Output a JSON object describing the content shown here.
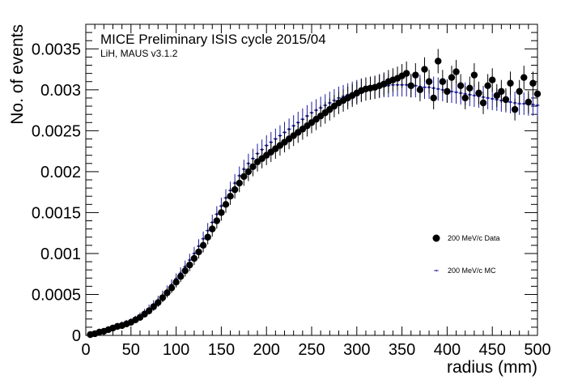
{
  "chart_data": {
    "type": "scatter",
    "title": "MICE Preliminary ISIS cycle 2015/04",
    "subtitle": "LiH, MAUS v3.1.2",
    "xlabel": "radius (mm)",
    "ylabel": "No. of events",
    "xlim": [
      0,
      500
    ],
    "ylim": [
      0,
      0.0038
    ],
    "x_ticks": [
      "0",
      "50",
      "100",
      "150",
      "200",
      "250",
      "300",
      "350",
      "400",
      "450",
      "500"
    ],
    "y_ticks": [
      "0",
      "0.0005",
      "0.001",
      "0.0015",
      "0.002",
      "0.0025",
      "0.003",
      "0.0035"
    ],
    "legend_position": "right-middle",
    "series": [
      {
        "name": "200 MeV/c Data",
        "color": "#000000",
        "marker": "circle",
        "x": [
          5,
          10,
          15,
          20,
          25,
          30,
          35,
          40,
          45,
          50,
          55,
          60,
          65,
          70,
          75,
          80,
          85,
          90,
          95,
          100,
          105,
          110,
          115,
          120,
          125,
          130,
          135,
          140,
          145,
          150,
          155,
          160,
          165,
          170,
          175,
          180,
          185,
          190,
          195,
          200,
          205,
          210,
          215,
          220,
          225,
          230,
          235,
          240,
          245,
          250,
          255,
          260,
          265,
          270,
          275,
          280,
          285,
          290,
          295,
          300,
          305,
          310,
          315,
          320,
          325,
          330,
          335,
          340,
          345,
          350,
          355,
          360,
          365,
          370,
          375,
          380,
          385,
          390,
          395,
          400,
          405,
          410,
          415,
          420,
          425,
          430,
          435,
          440,
          445,
          450,
          455,
          460,
          465,
          470,
          475,
          480,
          485,
          490,
          495,
          500
        ],
        "y": [
          1e-05,
          2e-05,
          4e-05,
          5e-05,
          7e-05,
          9e-05,
          0.00011,
          0.00012,
          0.00014,
          0.00016,
          0.00019,
          0.00022,
          0.00026,
          0.0003,
          0.00035,
          0.0004,
          0.00046,
          0.00052,
          0.00058,
          0.00065,
          0.00072,
          0.00079,
          0.00086,
          0.00094,
          0.00102,
          0.0011,
          0.0012,
          0.0013,
          0.0014,
          0.0015,
          0.0016,
          0.0017,
          0.00178,
          0.00186,
          0.00194,
          0.002,
          0.00206,
          0.00212,
          0.00216,
          0.0022,
          0.00224,
          0.00228,
          0.00232,
          0.00236,
          0.0024,
          0.00244,
          0.00248,
          0.00252,
          0.00256,
          0.0026,
          0.00264,
          0.00268,
          0.00272,
          0.00276,
          0.0028,
          0.00284,
          0.00287,
          0.0029,
          0.00293,
          0.00296,
          0.00299,
          0.00301,
          0.00302,
          0.00303,
          0.00305,
          0.00307,
          0.0031,
          0.00312,
          0.00314,
          0.00317,
          0.0032,
          0.00305,
          0.00318,
          0.003,
          0.00325,
          0.0031,
          0.0029,
          0.00335,
          0.0031,
          0.00298,
          0.00315,
          0.00322,
          0.00305,
          0.0029,
          0.00302,
          0.00318,
          0.00296,
          0.00284,
          0.00305,
          0.00312,
          0.00293,
          0.00298,
          0.00288,
          0.00308,
          0.00276,
          0.00298,
          0.00315,
          0.00285,
          0.00308,
          0.00295
        ]
      },
      {
        "name": "200 MeV/c MC",
        "color": "#1a1aa0",
        "marker": "dot",
        "x": [
          5,
          10,
          15,
          20,
          25,
          30,
          35,
          40,
          45,
          50,
          55,
          60,
          65,
          70,
          75,
          80,
          85,
          90,
          95,
          100,
          105,
          110,
          115,
          120,
          125,
          130,
          135,
          140,
          145,
          150,
          155,
          160,
          165,
          170,
          175,
          180,
          185,
          190,
          195,
          200,
          205,
          210,
          215,
          220,
          225,
          230,
          235,
          240,
          245,
          250,
          255,
          260,
          265,
          270,
          275,
          280,
          285,
          290,
          295,
          300,
          305,
          310,
          315,
          320,
          325,
          330,
          335,
          340,
          345,
          350,
          355,
          360,
          365,
          370,
          375,
          380,
          385,
          390,
          395,
          400,
          405,
          410,
          415,
          420,
          425,
          430,
          435,
          440,
          445,
          450,
          455,
          460,
          465,
          470,
          475,
          480,
          485,
          490,
          495,
          500
        ],
        "y": [
          1e-05,
          2e-05,
          4e-05,
          5e-05,
          7e-05,
          9e-05,
          0.00011,
          0.00013,
          0.00015,
          0.00017,
          0.0002,
          0.00024,
          0.00028,
          0.00033,
          0.00038,
          0.00043,
          0.00049,
          0.00055,
          0.00062,
          0.00069,
          0.00076,
          0.00084,
          0.00092,
          0.001,
          0.00109,
          0.00118,
          0.00128,
          0.00138,
          0.00148,
          0.00158,
          0.00168,
          0.00177,
          0.00186,
          0.00195,
          0.00203,
          0.0021,
          0.00216,
          0.00222,
          0.00227,
          0.00232,
          0.00236,
          0.0024,
          0.00244,
          0.00248,
          0.00252,
          0.00256,
          0.0026,
          0.00264,
          0.00268,
          0.00272,
          0.00275,
          0.00278,
          0.00281,
          0.00284,
          0.00287,
          0.0029,
          0.00292,
          0.00294,
          0.00296,
          0.00298,
          0.003,
          0.00301,
          0.00302,
          0.00303,
          0.00304,
          0.00305,
          0.00305,
          0.00306,
          0.00306,
          0.00306,
          0.00306,
          0.00305,
          0.00305,
          0.00304,
          0.00303,
          0.00303,
          0.00302,
          0.00301,
          0.003,
          0.00299,
          0.00298,
          0.00297,
          0.00296,
          0.00295,
          0.00294,
          0.00293,
          0.00292,
          0.00291,
          0.0029,
          0.00289,
          0.00288,
          0.00287,
          0.00286,
          0.00285,
          0.00284,
          0.00283,
          0.00283,
          0.00282,
          0.00282,
          0.00281
        ]
      }
    ]
  }
}
